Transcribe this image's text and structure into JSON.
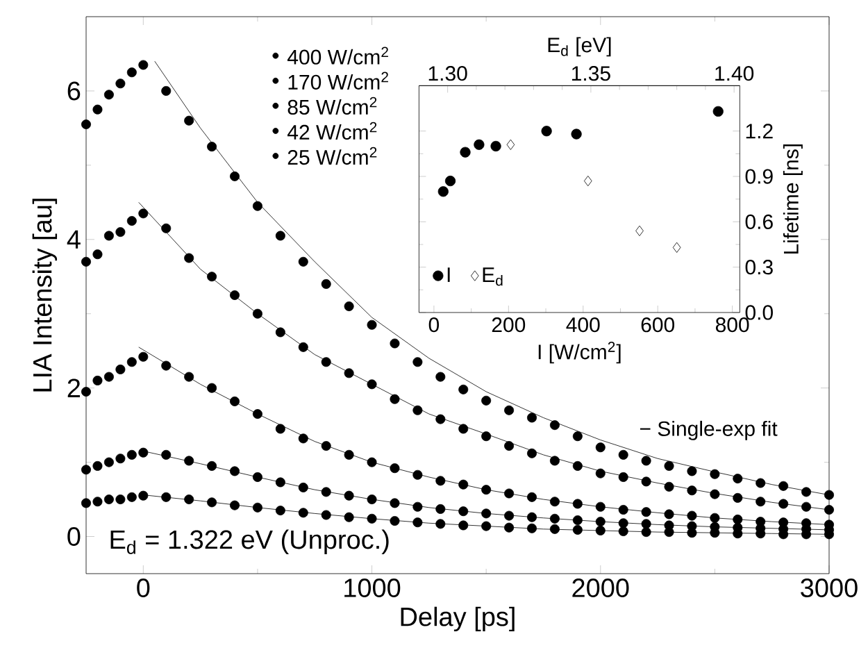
{
  "chart_data": [
    {
      "type": "scatter",
      "xlabel": "Delay [ps]",
      "ylabel": "LIA Intensity [au]",
      "xlim": [
        -250,
        3000
      ],
      "ylim": [
        -0.5,
        7
      ],
      "xticks": [
        0,
        1000,
        2000,
        3000
      ],
      "yticks": [
        0,
        2,
        4,
        6
      ],
      "marker": "circle",
      "legend": "top",
      "grid": false,
      "annotations": [
        "E$_{d}$ = 1.322 eV (Unproc.)",
        "− Single-exp fit"
      ],
      "x": [
        -250,
        -200,
        -150,
        -100,
        -50,
        0,
        100,
        200,
        300,
        400,
        500,
        600,
        700,
        800,
        900,
        1000,
        1100,
        1200,
        1300,
        1400,
        1500,
        1600,
        1700,
        1800,
        1900,
        2000,
        2100,
        2200,
        2300,
        2400,
        2500,
        2600,
        2700,
        2800,
        2900,
        3000
      ],
      "series": [
        {
          "name": "400 W/cm$^{2}$",
          "color": "#000000",
          "values": [
            5.55,
            5.75,
            5.95,
            6.1,
            6.25,
            6.35,
            6.0,
            5.6,
            5.25,
            4.85,
            4.45,
            4.05,
            3.7,
            3.4,
            3.1,
            2.85,
            2.6,
            2.35,
            2.15,
            1.98,
            1.83,
            1.7,
            1.6,
            1.5,
            1.35,
            1.2,
            1.1,
            1.02,
            0.95,
            0.88,
            0.84,
            0.78,
            0.72,
            0.68,
            0.6,
            0.56
          ]
        },
        {
          "name": "170 W/cm$^{2}$",
          "color": "#000000",
          "values": [
            3.7,
            3.8,
            4.05,
            4.1,
            4.25,
            4.35,
            4.15,
            3.75,
            3.5,
            3.25,
            3.0,
            2.75,
            2.55,
            2.35,
            2.2,
            2.05,
            1.85,
            1.7,
            1.58,
            1.45,
            1.35,
            1.22,
            1.12,
            1.02,
            0.95,
            0.85,
            0.8,
            0.74,
            0.67,
            0.62,
            0.57,
            0.52,
            0.47,
            0.44,
            0.4,
            0.36
          ]
        },
        {
          "name": "85 W/cm$^{2}$",
          "color": "#000000",
          "values": [
            1.95,
            2.1,
            2.15,
            2.25,
            2.35,
            2.42,
            2.3,
            2.15,
            2.0,
            1.82,
            1.65,
            1.45,
            1.32,
            1.22,
            1.1,
            1.0,
            0.92,
            0.83,
            0.75,
            0.7,
            0.63,
            0.58,
            0.53,
            0.47,
            0.44,
            0.4,
            0.36,
            0.33,
            0.3,
            0.28,
            0.25,
            0.23,
            0.2,
            0.19,
            0.18,
            0.16
          ]
        },
        {
          "name": "42 W/cm$^{2}$",
          "color": "#000000",
          "values": [
            0.9,
            0.95,
            1.0,
            1.05,
            1.1,
            1.13,
            1.1,
            1.02,
            0.95,
            0.88,
            0.8,
            0.73,
            0.66,
            0.6,
            0.55,
            0.5,
            0.45,
            0.4,
            0.37,
            0.34,
            0.31,
            0.28,
            0.26,
            0.24,
            0.22,
            0.2,
            0.18,
            0.17,
            0.15,
            0.14,
            0.13,
            0.12,
            0.11,
            0.1,
            0.1,
            0.09
          ]
        },
        {
          "name": "25 W/cm$^{2}$",
          "color": "#000000",
          "values": [
            0.45,
            0.47,
            0.5,
            0.5,
            0.53,
            0.55,
            0.53,
            0.5,
            0.46,
            0.42,
            0.39,
            0.35,
            0.32,
            0.29,
            0.26,
            0.24,
            0.21,
            0.19,
            0.17,
            0.15,
            0.14,
            0.12,
            0.11,
            0.1,
            0.09,
            0.08,
            0.07,
            0.06,
            0.06,
            0.05,
            0.05,
            0.04,
            0.04,
            0.03,
            0.03,
            0.03
          ]
        },
        {
          "type": "line",
          "marker": "none",
          "color": "#000000",
          "x": [
            50,
            250,
            500,
            750,
            1000,
            1250,
            1500,
            1750,
            2000,
            2250,
            2500,
            2750,
            3000
          ],
          "values": [
            6.4,
            5.5,
            4.5,
            3.7,
            2.95,
            2.4,
            1.95,
            1.6,
            1.3,
            1.05,
            0.87,
            0.7,
            0.56
          ]
        },
        {
          "type": "line",
          "marker": "none",
          "color": "#000000",
          "x": [
            -20,
            250,
            500,
            750,
            1000,
            1250,
            1500,
            1750,
            2000,
            2250,
            2500,
            2750,
            3000
          ],
          "values": [
            4.5,
            3.6,
            3.0,
            2.45,
            2.05,
            1.65,
            1.38,
            1.1,
            0.88,
            0.72,
            0.58,
            0.46,
            0.36
          ]
        },
        {
          "type": "line",
          "marker": "none",
          "color": "#000000",
          "x": [
            -20,
            250,
            500,
            750,
            1000,
            1250,
            1500,
            1750,
            2000,
            2250,
            2500,
            2750,
            3000
          ],
          "values": [
            2.55,
            2.05,
            1.65,
            1.28,
            1.0,
            0.8,
            0.63,
            0.5,
            0.4,
            0.32,
            0.25,
            0.2,
            0.16
          ]
        },
        {
          "type": "line",
          "marker": "none",
          "color": "#000000",
          "x": [
            0,
            250,
            500,
            750,
            1000,
            1250,
            1500,
            1750,
            2000,
            2250,
            2500,
            2750,
            3000
          ],
          "values": [
            1.15,
            0.98,
            0.8,
            0.63,
            0.5,
            0.39,
            0.31,
            0.25,
            0.2,
            0.16,
            0.13,
            0.11,
            0.09
          ]
        },
        {
          "type": "line",
          "marker": "none",
          "color": "#000000",
          "x": [
            0,
            250,
            500,
            750,
            1000,
            1250,
            1500,
            1750,
            2000,
            2250,
            2500,
            2750,
            3000
          ],
          "values": [
            0.56,
            0.48,
            0.39,
            0.31,
            0.24,
            0.18,
            0.14,
            0.1,
            0.08,
            0.06,
            0.05,
            0.04,
            0.03
          ]
        }
      ]
    },
    {
      "type": "scatter",
      "xlabel": "I [W/cm$^{2}$]",
      "x2label": "E$_{d}$ [eV]",
      "ylabel": "Lifetime [ns]",
      "xlim": [
        -40,
        820
      ],
      "xticks": [
        0,
        200,
        400,
        600,
        800
      ],
      "x2lim": [
        1.29,
        1.402
      ],
      "x2ticks": [
        {
          "value": 1.3,
          "label": "1.30"
        },
        1.35,
        {
          "value": 1.4,
          "label": "1.40"
        }
      ],
      "ylim": [
        0,
        1.5
      ],
      "yticks": [
        {
          "value": 0,
          "label": "0.0"
        },
        0.3,
        0.6,
        0.9,
        1.2
      ],
      "legend": "bottom left",
      "grid": false,
      "series": [
        {
          "name": "I",
          "color": "#000000",
          "marker": "circle",
          "x": [
            25,
            44,
            84,
            121,
            166,
            302,
            382,
            762
          ],
          "values": [
            0.8,
            0.87,
            1.06,
            1.11,
            1.1,
            1.2,
            1.18,
            1.33
          ]
        },
        {
          "name": "E$_{d}$",
          "color": "#000000",
          "marker": "diamond",
          "axis": "x2",
          "x": [
            1.322,
            1.349,
            1.367,
            1.38
          ],
          "values": [
            1.11,
            0.87,
            0.54,
            0.43
          ]
        }
      ]
    }
  ]
}
